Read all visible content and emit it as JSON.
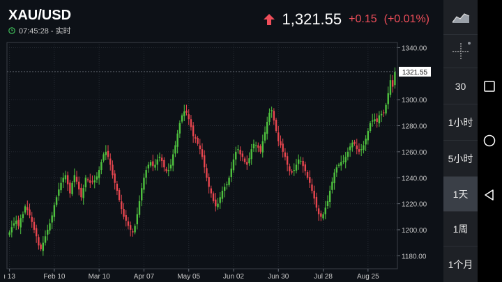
{
  "header": {
    "symbol": "XAU/USD",
    "time": "07:45:28 - 实时",
    "price": "1,321.55",
    "change": "+0.15",
    "change_pct": "(+0.01%)",
    "price_color": "#ffffff",
    "change_color": "#ef4e5a",
    "arrow_icon": "up-arrow-icon"
  },
  "sidebar": {
    "items": [
      {
        "label": "",
        "icon": "area-chart-icon"
      },
      {
        "label": "",
        "icon": "crosshair-icon"
      },
      {
        "label": "30"
      },
      {
        "label": "1小时"
      },
      {
        "label": "5小时"
      },
      {
        "label": "1天",
        "active": true
      },
      {
        "label": "1周"
      },
      {
        "label": "1个月"
      }
    ]
  },
  "navbar": {
    "icons": [
      "square-icon",
      "circle-icon",
      "back-triangle-icon"
    ]
  },
  "chart_data": {
    "type": "candlestick",
    "current_price_label": "1321.55",
    "yticks": [
      "1340.00",
      "1300.00",
      "1280.00",
      "1260.00",
      "1240.00",
      "1220.00",
      "1200.00",
      "1180.00"
    ],
    "xticks": [
      "ı 13",
      "Feb 10",
      "Mar 10",
      "Apr 07",
      "May 05",
      "Jun 02",
      "Jun 30",
      "Jul 28",
      "Aug 25"
    ],
    "ylim": [
      1170,
      1344
    ],
    "up_color": "#4fc23f",
    "down_color": "#e8464f",
    "closes": [
      1198,
      1202,
      1205,
      1207,
      1203,
      1209,
      1212,
      1218,
      1215,
      1211,
      1206,
      1200,
      1195,
      1188,
      1185,
      1190,
      1195,
      1200,
      1205,
      1211,
      1219,
      1225,
      1231,
      1236,
      1240,
      1242,
      1235,
      1228,
      1236,
      1242,
      1237,
      1231,
      1225,
      1232,
      1240,
      1238,
      1236,
      1237,
      1238,
      1241,
      1246,
      1252,
      1258,
      1260,
      1256,
      1250,
      1242,
      1236,
      1230,
      1223,
      1216,
      1210,
      1207,
      1203,
      1200,
      1198,
      1203,
      1212,
      1222,
      1232,
      1240,
      1246,
      1250,
      1252,
      1249,
      1250,
      1254,
      1256,
      1253,
      1248,
      1245,
      1246,
      1250,
      1258,
      1265,
      1274,
      1282,
      1288,
      1291,
      1290,
      1285,
      1279,
      1272,
      1270,
      1266,
      1262,
      1256,
      1248,
      1240,
      1233,
      1228,
      1222,
      1218,
      1220,
      1225,
      1230,
      1233,
      1235,
      1240,
      1247,
      1254,
      1260,
      1262,
      1258,
      1256,
      1252,
      1250,
      1255,
      1262,
      1266,
      1265,
      1263,
      1260,
      1268,
      1275,
      1283,
      1290,
      1292,
      1284,
      1276,
      1268,
      1265,
      1260,
      1256,
      1250,
      1245,
      1244,
      1246,
      1250,
      1254,
      1253,
      1249,
      1245,
      1240,
      1236,
      1230,
      1224,
      1217,
      1212,
      1210,
      1212,
      1217,
      1222,
      1230,
      1237,
      1244,
      1248,
      1250,
      1252,
      1253,
      1256,
      1260,
      1264,
      1267,
      1266,
      1262,
      1260,
      1262,
      1265,
      1270,
      1276,
      1282,
      1284,
      1285,
      1283,
      1288,
      1289,
      1290,
      1296,
      1305,
      1315,
      1310,
      1321.55
    ]
  }
}
